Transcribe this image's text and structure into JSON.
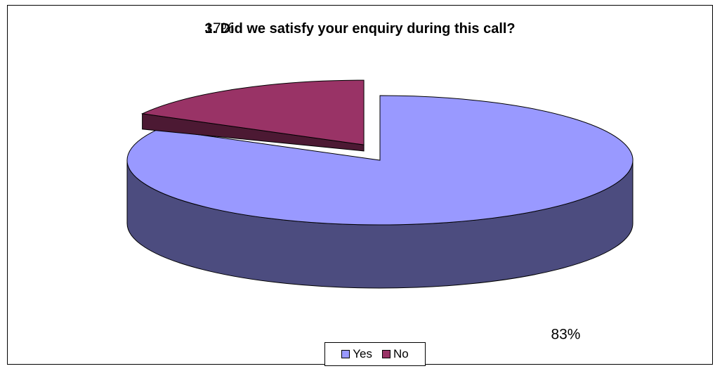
{
  "chart_data": {
    "type": "pie",
    "title": "3.  Did we satisfy your enquiry during this call?",
    "categories": [
      "Yes",
      "No"
    ],
    "values": [
      83,
      17
    ],
    "data_labels": [
      "83%",
      "17%"
    ],
    "colors": {
      "Yes": {
        "top": "#9999ff",
        "side": "#4c4c7f"
      },
      "No": {
        "top": "#993366",
        "side": "#4c1933"
      }
    },
    "exploded": "No",
    "view": "3d",
    "legend_position": "bottom"
  }
}
